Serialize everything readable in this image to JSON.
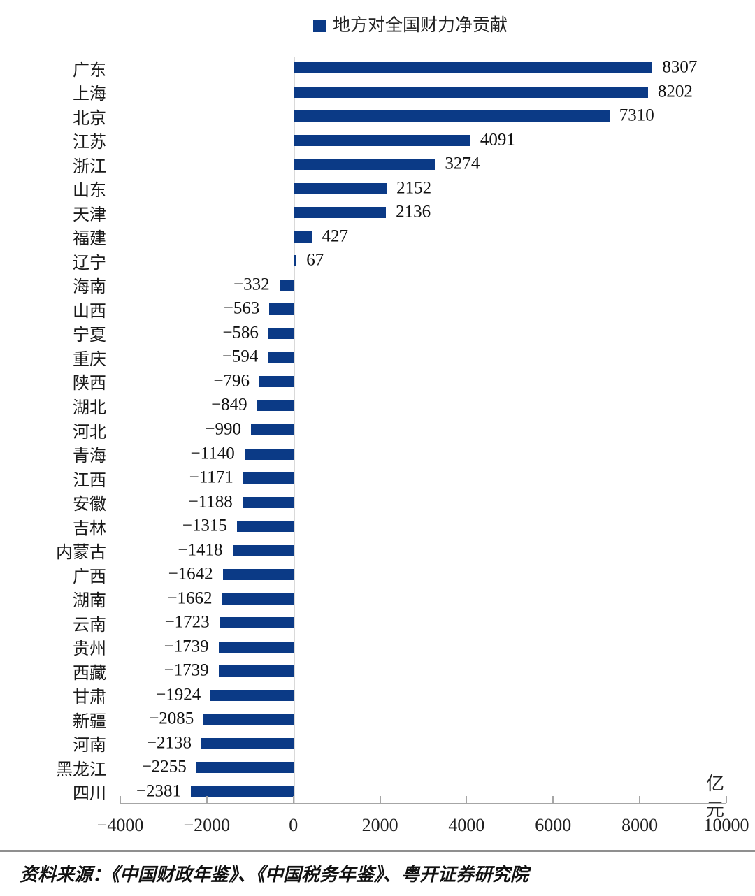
{
  "legend": {
    "label": "地方对全国财力净贡献",
    "marker_color": "#0b3a86"
  },
  "chart_data": {
    "type": "bar",
    "orientation": "horizontal",
    "title": "",
    "legend_entries": [
      "地方对全国财力净贡献"
    ],
    "legend_position": "top-center",
    "bar_color": "#0b3a86",
    "grid": false,
    "unit": "亿元",
    "categories": [
      "广东",
      "上海",
      "北京",
      "江苏",
      "浙江",
      "山东",
      "天津",
      "福建",
      "辽宁",
      "海南",
      "山西",
      "宁夏",
      "重庆",
      "陕西",
      "湖北",
      "河北",
      "青海",
      "江西",
      "安徽",
      "吉林",
      "内蒙古",
      "广西",
      "湖南",
      "云南",
      "贵州",
      "西藏",
      "甘肃",
      "新疆",
      "河南",
      "黑龙江",
      "四川"
    ],
    "values": [
      8307,
      8202,
      7310,
      4091,
      3274,
      2152,
      2136,
      427,
      67,
      -332,
      -563,
      -586,
      -594,
      -796,
      -849,
      -990,
      -1140,
      -1171,
      -1188,
      -1315,
      -1418,
      -1642,
      -1662,
      -1723,
      -1739,
      -1739,
      -1924,
      -2085,
      -2138,
      -2255,
      -2381
    ],
    "xlim": [
      -4000,
      10000
    ],
    "xticks": [
      -4000,
      -2000,
      0,
      2000,
      4000,
      6000,
      8000,
      10000
    ],
    "xlabel": "亿元",
    "ylabel": ""
  },
  "axis": {
    "unit_label": "亿元"
  },
  "footer": {
    "source": "资料来源：《中国财政年鉴》、《中国税务年鉴》、粤开证券研究院"
  }
}
